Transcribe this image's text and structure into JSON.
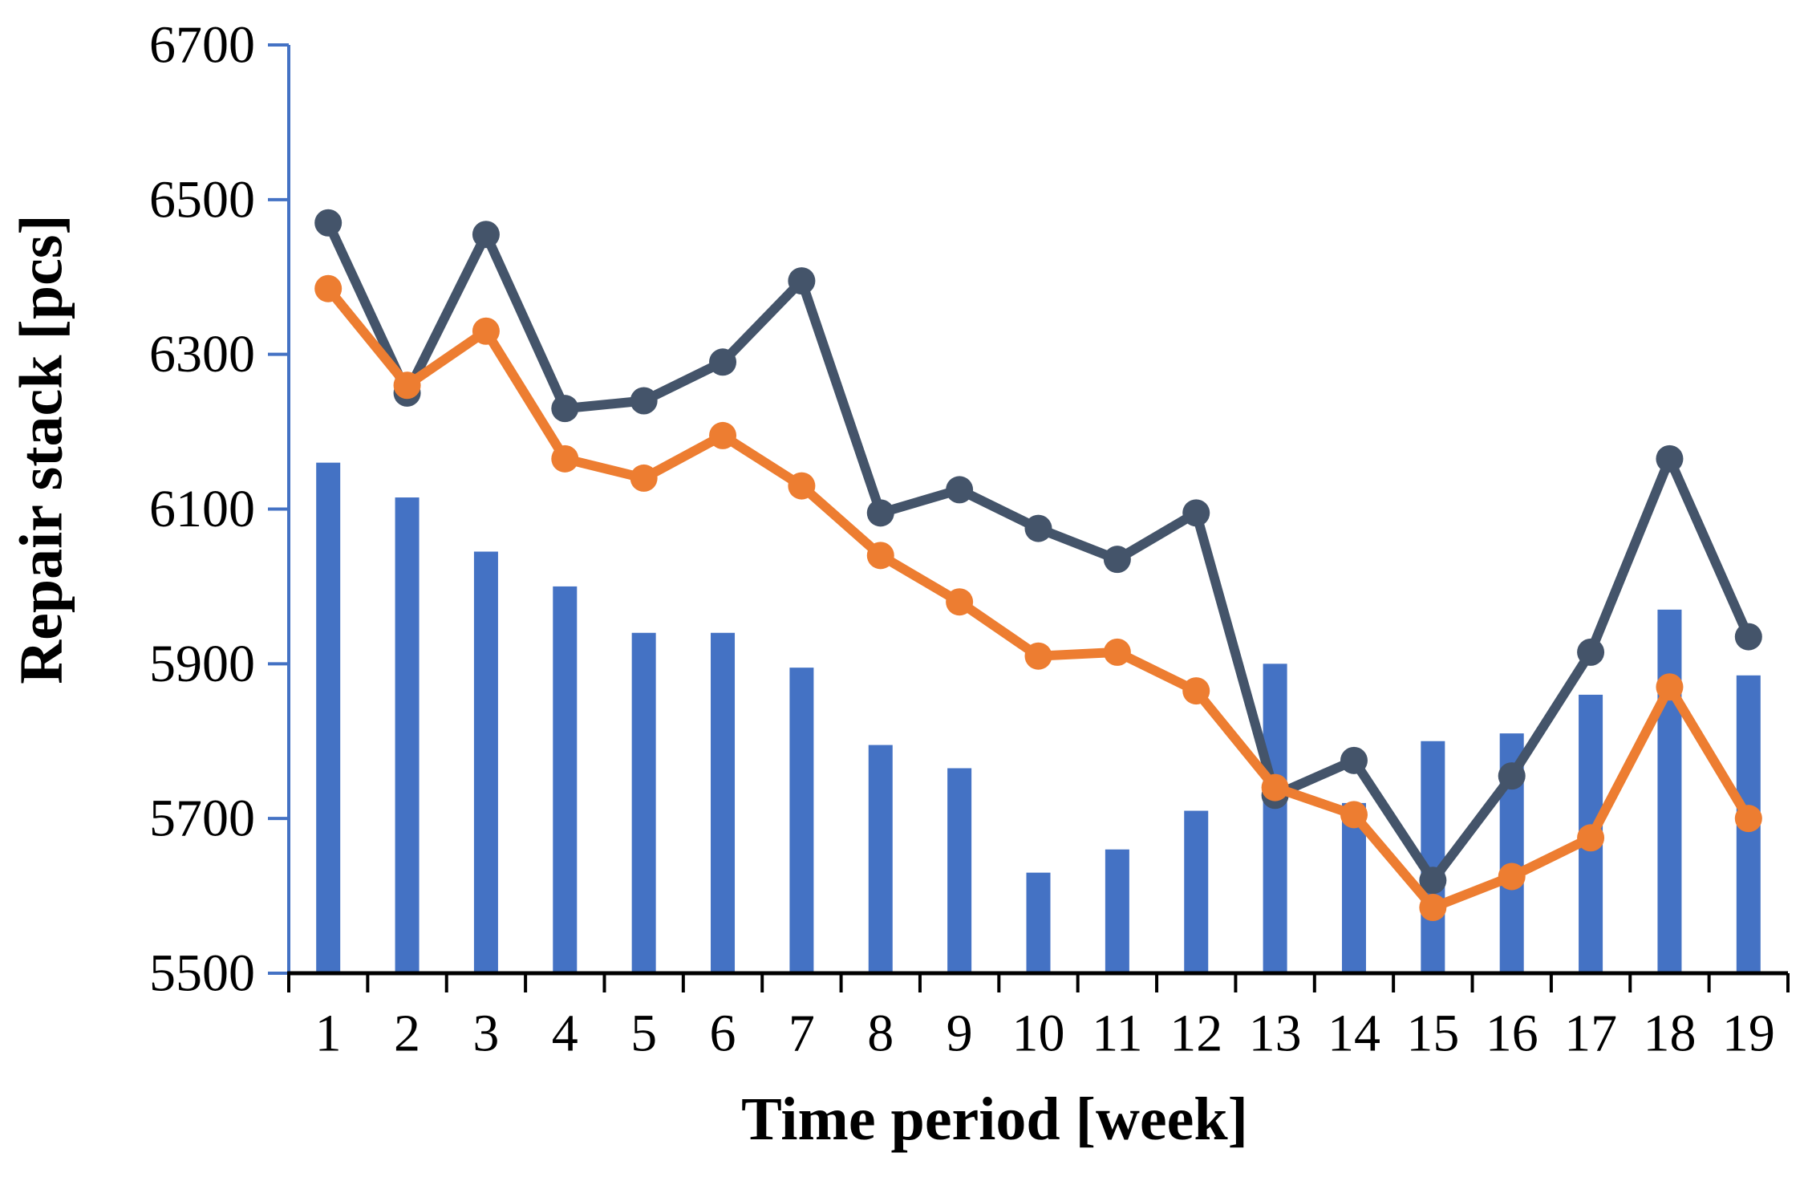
{
  "chart_data": {
    "type": "bar",
    "subtype": "combo-bar-and-lines",
    "title": "",
    "xlabel": "Time period [week]",
    "ylabel": "Repair stack [pcs]",
    "ylim": [
      5500,
      6700
    ],
    "yticks": [
      5500,
      5700,
      5900,
      6100,
      6300,
      6500,
      6700
    ],
    "grid": "off",
    "legend": "none",
    "categories": [
      1,
      2,
      3,
      4,
      5,
      6,
      7,
      8,
      9,
      10,
      11,
      12,
      13,
      14,
      15,
      16,
      17,
      18,
      19
    ],
    "series": [
      {
        "name": "repair-stack-bars",
        "type": "bar",
        "color": "#4472C4",
        "values": [
          6160,
          6115,
          6045,
          6000,
          5940,
          5940,
          5895,
          5795,
          5765,
          5630,
          5660,
          5710,
          5900,
          5720,
          5800,
          5810,
          5860,
          5970,
          5885
        ]
      },
      {
        "name": "upper-dark-line",
        "type": "line",
        "color": "#44546A",
        "values": [
          6470,
          6250,
          6455,
          6230,
          6240,
          6290,
          6395,
          6095,
          6125,
          6075,
          6035,
          6095,
          5730,
          5775,
          5620,
          5755,
          5915,
          6165,
          5935
        ]
      },
      {
        "name": "lower-orange-line",
        "type": "line",
        "color": "#ED7D31",
        "values": [
          6385,
          6260,
          6330,
          6165,
          6140,
          6195,
          6130,
          6040,
          5980,
          5910,
          5915,
          5865,
          5740,
          5705,
          5585,
          5625,
          5675,
          5870,
          5700
        ]
      }
    ],
    "colors": {
      "bar_and_y_axis": "#4472C4",
      "dark_line": "#44546A",
      "orange_line": "#ED7D31",
      "x_axis_and_text": "#000000"
    }
  }
}
